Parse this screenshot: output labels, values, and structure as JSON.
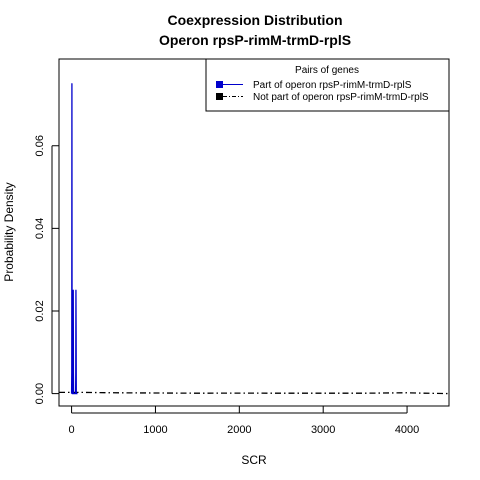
{
  "chart_data": {
    "type": "line",
    "title": "Coexpression Distribution",
    "subtitle": "Operon rpsP-rimM-trmD-rplS",
    "xlabel": "SCR",
    "ylabel": "Probability Density",
    "xlim": [
      -150,
      4500
    ],
    "ylim": [
      -0.003,
      0.081
    ],
    "x_ticks": [
      0,
      1000,
      2000,
      3000,
      4000
    ],
    "x_tick_labels": [
      "0",
      "1000",
      "2000",
      "3000",
      "4000"
    ],
    "y_ticks": [
      0.0,
      0.02,
      0.04,
      0.06
    ],
    "y_tick_labels": [
      "0.00",
      "0.02",
      "0.04",
      "0.06"
    ],
    "grid": false,
    "legend": {
      "title": "Pairs of genes",
      "position": "top-right",
      "entries": [
        {
          "label": "Part of operon rpsP-rimM-trmD-rplS",
          "color": "#0000cc",
          "line": "solid"
        },
        {
          "label": "Not part of operon rpsP-rimM-trmD-rplS",
          "color": "#000000",
          "line": "dashdot"
        }
      ]
    },
    "series": [
      {
        "name": "Part of operon rpsP-rimM-trmD-rplS",
        "color": "#0000cc",
        "line": "solid",
        "x": [
          0,
          2,
          4,
          6,
          8,
          10,
          12,
          14,
          16,
          18,
          20,
          22,
          24,
          26,
          28,
          30,
          32,
          34,
          36,
          38,
          40,
          42,
          44,
          46,
          48,
          50,
          52,
          54,
          56,
          58,
          60,
          62,
          64,
          66,
          68,
          70
        ],
        "y": [
          0.0,
          0.005,
          0.075,
          0.01,
          0.0,
          0.0,
          0.0,
          0.0,
          0.0,
          0.005,
          0.025,
          0.005,
          0.0,
          0.0,
          0.0,
          0.0,
          0.0,
          0.0,
          0.0,
          0.0,
          0.0,
          0.0,
          0.0,
          0.0,
          0.0,
          0.005,
          0.025,
          0.015,
          0.0,
          0.0,
          0.0,
          0.0,
          0.0,
          0.0,
          0.0,
          0.0
        ]
      },
      {
        "name": "Not part of operon rpsP-rimM-trmD-rplS",
        "color": "#000000",
        "line": "dashdot",
        "x": [
          -150,
          0,
          100,
          500,
          1000,
          1500,
          2000,
          2500,
          3000,
          3500,
          4000,
          4200,
          4500
        ],
        "y": [
          0.0003,
          0.0003,
          0.0003,
          0.0002,
          0.00015,
          0.0001,
          0.00012,
          0.0001,
          0.0001,
          0.0001,
          0.0002,
          0.0001,
          0.0
        ]
      }
    ]
  }
}
